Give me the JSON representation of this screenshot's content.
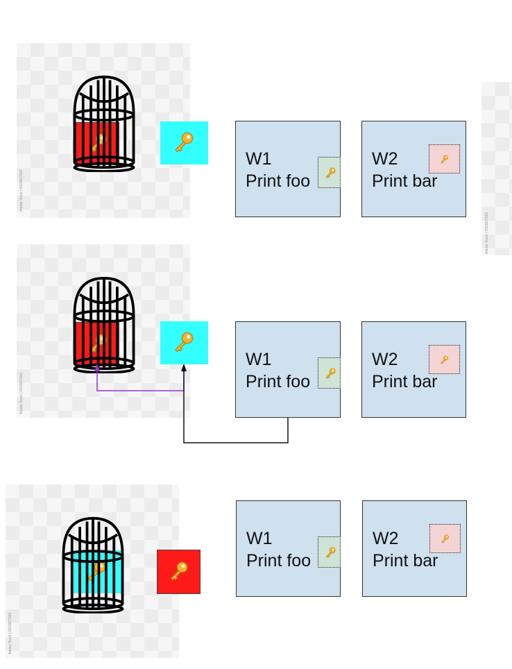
{
  "rows": [
    {
      "workers": [
        {
          "title": "W1",
          "text": "Print foo"
        },
        {
          "title": "W2",
          "text": "Print bar"
        }
      ]
    },
    {
      "workers": [
        {
          "title": "W1",
          "text": "Print foo"
        },
        {
          "title": "W2",
          "text": "Print bar"
        }
      ]
    },
    {
      "workers": [
        {
          "title": "W1",
          "text": "Print foo"
        },
        {
          "title": "W2",
          "text": "Print bar"
        }
      ]
    }
  ],
  "watermark": "Adobe Stock | #523827966",
  "colors": {
    "red_key": "#ff1a1a",
    "cyan_key": "#33ffff",
    "worker_fill": "#cfe0ef",
    "slot_green": "#cfe3d6",
    "slot_pink": "#f3d3d3",
    "arrow_purple": "#9933cc",
    "arrow_black": "#111111"
  },
  "icons": [
    "birdcage-icon",
    "key-icon"
  ]
}
